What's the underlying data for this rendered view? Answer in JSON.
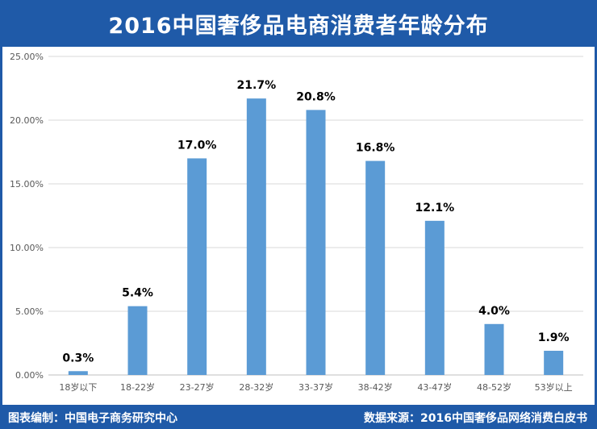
{
  "header": {
    "title": "2016中国奢侈品电商消费者年龄分布"
  },
  "footer": {
    "left_text": "图表编制：中国电子商务研究中心",
    "right_text": "数据来源：2016中国奢侈品网络消费白皮书"
  },
  "colors": {
    "brand": "#1f5aa8",
    "bar": "#5b9bd5",
    "grid": "#d9d9d9",
    "axis_text": "#595959",
    "label_text": "#000000"
  },
  "chart_data": {
    "type": "bar",
    "title": "2016中国奢侈品电商消费者年龄分布",
    "xlabel": "",
    "ylabel": "",
    "categories": [
      "18岁以下",
      "18-22岁",
      "23-27岁",
      "28-32岁",
      "33-37岁",
      "38-42岁",
      "43-47岁",
      "48-52岁",
      "53岁以上"
    ],
    "values": [
      0.3,
      5.4,
      17.0,
      21.7,
      20.8,
      16.8,
      12.1,
      4.0,
      1.9
    ],
    "value_labels": [
      "0.3%",
      "5.4%",
      "17.0%",
      "21.7%",
      "20.8%",
      "16.8%",
      "12.1%",
      "4.0%",
      "1.9%"
    ],
    "ylim": [
      0,
      25
    ],
    "yticks": [
      0,
      5,
      10,
      15,
      20,
      25
    ],
    "ytick_labels": [
      "0.00%",
      "5.00%",
      "10.00%",
      "15.00%",
      "20.00%",
      "25.00%"
    ],
    "grid": true,
    "legend": "none"
  }
}
